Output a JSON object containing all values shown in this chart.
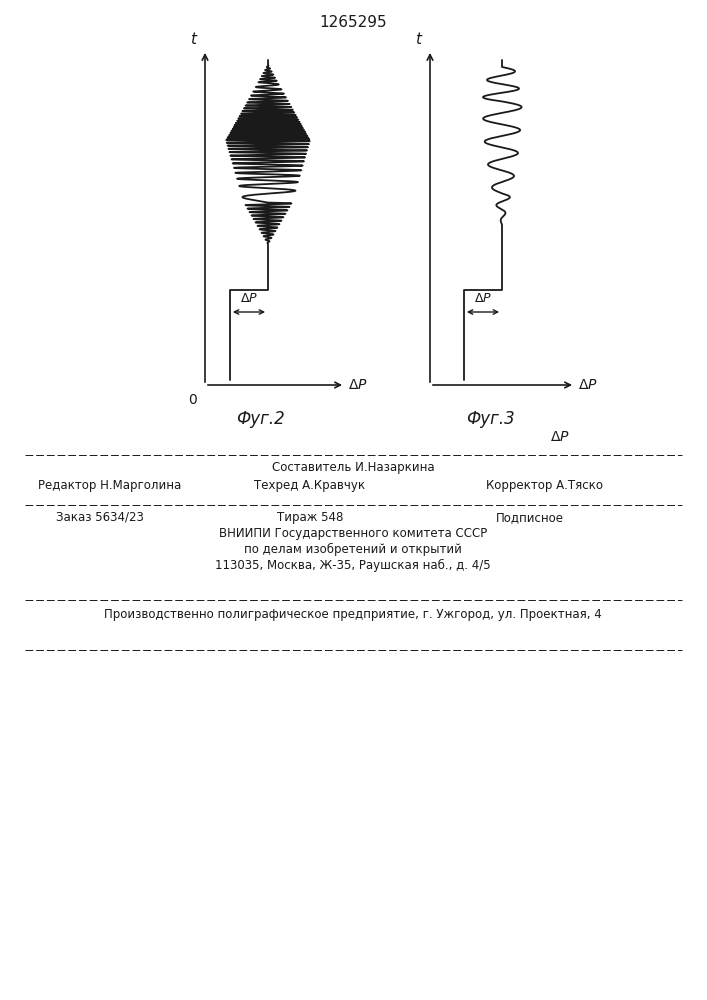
{
  "title": "1265295",
  "t_label": "t",
  "dp_label": "ΔP",
  "origin_label": "0",
  "fig2_caption": "Фуг.2",
  "fig3_caption": "Фуг.3",
  "text_sestavitel": "Составитель И.Назаркина",
  "text_redaktor": "Редактор Н.Марголина",
  "text_tehred": "Техред А.Кравчук",
  "text_korrektor": "Корректор А.Тяско",
  "text_zakaz": "Заказ 5634/23",
  "text_tirazh": "Тираж 548",
  "text_podpisnoe": "Подписное",
  "text_vniiipi": "ВНИИПИ Государственного комитета СССР",
  "text_po_delam": "по делам изобретений и открытий",
  "text_address": "113035, Москва, Ж-35, Раушская наб., д. 4/5",
  "text_proizv": "Производственно полиграфическое предприятие, г. Ужгород, ул. Проектная, 4",
  "bg_color": "#ffffff",
  "line_color": "#1a1a1a"
}
